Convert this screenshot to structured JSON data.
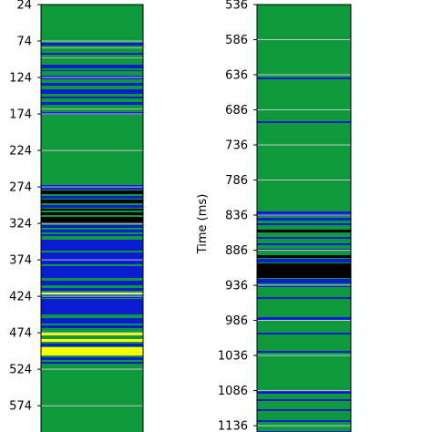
{
  "chart_data": [
    {
      "type": "heatmap",
      "ylabel": "",
      "ylim": [
        24,
        610
      ],
      "y_inverted": true,
      "yticks": [
        24,
        74,
        124,
        174,
        224,
        274,
        324,
        374,
        424,
        474,
        524,
        574
      ],
      "ytick_labels": [
        "24",
        "74",
        "124",
        "174",
        "224",
        "274",
        "324",
        "374",
        "424",
        "474",
        "524",
        "574"
      ],
      "grid": true,
      "background_color": "#0e9a3c",
      "bands": [
        {
          "start": 42,
          "end": 45,
          "color": "#0a1ccf"
        },
        {
          "start": 47,
          "end": 48,
          "color": "#b0b0b0"
        },
        {
          "start": 53,
          "end": 55,
          "color": "#0a1ccf"
        },
        {
          "start": 58,
          "end": 59,
          "color": "#b0b0b0"
        },
        {
          "start": 66,
          "end": 70,
          "color": "#0a1ccf"
        },
        {
          "start": 72,
          "end": 73,
          "color": "#0a1ccf"
        },
        {
          "start": 78,
          "end": 82,
          "color": "#0a1ccf"
        },
        {
          "start": 86,
          "end": 89,
          "color": "#0a1ccf"
        },
        {
          "start": 93,
          "end": 98,
          "color": "#0a1ccf"
        },
        {
          "start": 101,
          "end": 103,
          "color": "#0a1ccf"
        },
        {
          "start": 107,
          "end": 110,
          "color": "#0a1ccf"
        },
        {
          "start": 114,
          "end": 115,
          "color": "#b0b0b0"
        },
        {
          "start": 118,
          "end": 121,
          "color": "#0a1ccf"
        },
        {
          "start": 198,
          "end": 203,
          "color": "#0a1ccf"
        },
        {
          "start": 204,
          "end": 208,
          "color": "#000000"
        },
        {
          "start": 210,
          "end": 213,
          "color": "#0a1ccf"
        },
        {
          "start": 214,
          "end": 218,
          "color": "#000000"
        },
        {
          "start": 220,
          "end": 223,
          "color": "#0a1ccf"
        },
        {
          "start": 224,
          "end": 226,
          "color": "#000000"
        },
        {
          "start": 228,
          "end": 231,
          "color": "#000000"
        },
        {
          "start": 233,
          "end": 240,
          "color": "#000000"
        },
        {
          "start": 242,
          "end": 245,
          "color": "#0a1ccf"
        },
        {
          "start": 247,
          "end": 250,
          "color": "#0a1ccf"
        },
        {
          "start": 252,
          "end": 254,
          "color": "#0a1ccf"
        },
        {
          "start": 258,
          "end": 270,
          "color": "#0a1ccf"
        },
        {
          "start": 272,
          "end": 285,
          "color": "#0a1ccf"
        },
        {
          "start": 287,
          "end": 300,
          "color": "#0a1ccf"
        },
        {
          "start": 303,
          "end": 308,
          "color": "#0a1ccf"
        },
        {
          "start": 311,
          "end": 314,
          "color": "#0a1ccf"
        },
        {
          "start": 316,
          "end": 318,
          "color": "#f0e68c"
        },
        {
          "start": 319,
          "end": 322,
          "color": "#0a1ccf"
        },
        {
          "start": 323,
          "end": 340,
          "color": "#0a1ccf"
        },
        {
          "start": 344,
          "end": 350,
          "color": "#0a1ccf"
        },
        {
          "start": 352,
          "end": 355,
          "color": "#0a1ccf"
        },
        {
          "start": 360,
          "end": 363,
          "color": "#ffff00"
        },
        {
          "start": 367,
          "end": 370,
          "color": "#ffff00"
        },
        {
          "start": 372,
          "end": 375,
          "color": "#0a1ccf"
        },
        {
          "start": 376,
          "end": 385,
          "color": "#ffff00"
        },
        {
          "start": 387,
          "end": 390,
          "color": "#0a1ccf"
        },
        {
          "start": 392,
          "end": 394,
          "color": "#0a1ccf"
        }
      ]
    },
    {
      "type": "heatmap",
      "ylabel": "Time (ms)",
      "ylim": [
        536,
        1145
      ],
      "y_inverted": true,
      "yticks": [
        536,
        586,
        636,
        686,
        736,
        786,
        836,
        886,
        936,
        986,
        1036,
        1086,
        1136
      ],
      "ytick_labels": [
        "536",
        "586",
        "636",
        "686",
        "736",
        "786",
        "836",
        "886",
        "936",
        "986",
        "1036",
        "1086",
        "1136"
      ],
      "grid": true,
      "background_color": "#0e9a3c",
      "bands": [
        {
          "start": 80,
          "end": 82,
          "color": "#0a1ccf"
        },
        {
          "start": 128,
          "end": 130,
          "color": "#0a1ccf"
        },
        {
          "start": 227,
          "end": 232,
          "color": "#0a1ccf"
        },
        {
          "start": 234,
          "end": 237,
          "color": "#0a1ccf"
        },
        {
          "start": 240,
          "end": 242,
          "color": "#0a1ccf"
        },
        {
          "start": 247,
          "end": 250,
          "color": "#000000"
        },
        {
          "start": 255,
          "end": 257,
          "color": "#0a1ccf"
        },
        {
          "start": 262,
          "end": 264,
          "color": "#0a1ccf"
        },
        {
          "start": 268,
          "end": 270,
          "color": "#0a1ccf"
        },
        {
          "start": 275,
          "end": 278,
          "color": "#000000"
        },
        {
          "start": 279,
          "end": 283,
          "color": "#0a1ccf"
        },
        {
          "start": 284,
          "end": 300,
          "color": "#000000"
        },
        {
          "start": 301,
          "end": 306,
          "color": "#0a1ccf"
        },
        {
          "start": 308,
          "end": 310,
          "color": "#0a1ccf"
        },
        {
          "start": 321,
          "end": 323,
          "color": "#0a1ccf"
        },
        {
          "start": 343,
          "end": 346,
          "color": "#0a1ccf"
        },
        {
          "start": 360,
          "end": 362,
          "color": "#0a1ccf"
        },
        {
          "start": 380,
          "end": 382,
          "color": "#0a1ccf"
        },
        {
          "start": 424,
          "end": 427,
          "color": "#0a1ccf"
        },
        {
          "start": 433,
          "end": 435,
          "color": "#0a1ccf"
        },
        {
          "start": 444,
          "end": 446,
          "color": "#0a1ccf"
        },
        {
          "start": 456,
          "end": 458,
          "color": "#0a1ccf"
        },
        {
          "start": 468,
          "end": 470,
          "color": "#0a1ccf"
        }
      ]
    }
  ]
}
